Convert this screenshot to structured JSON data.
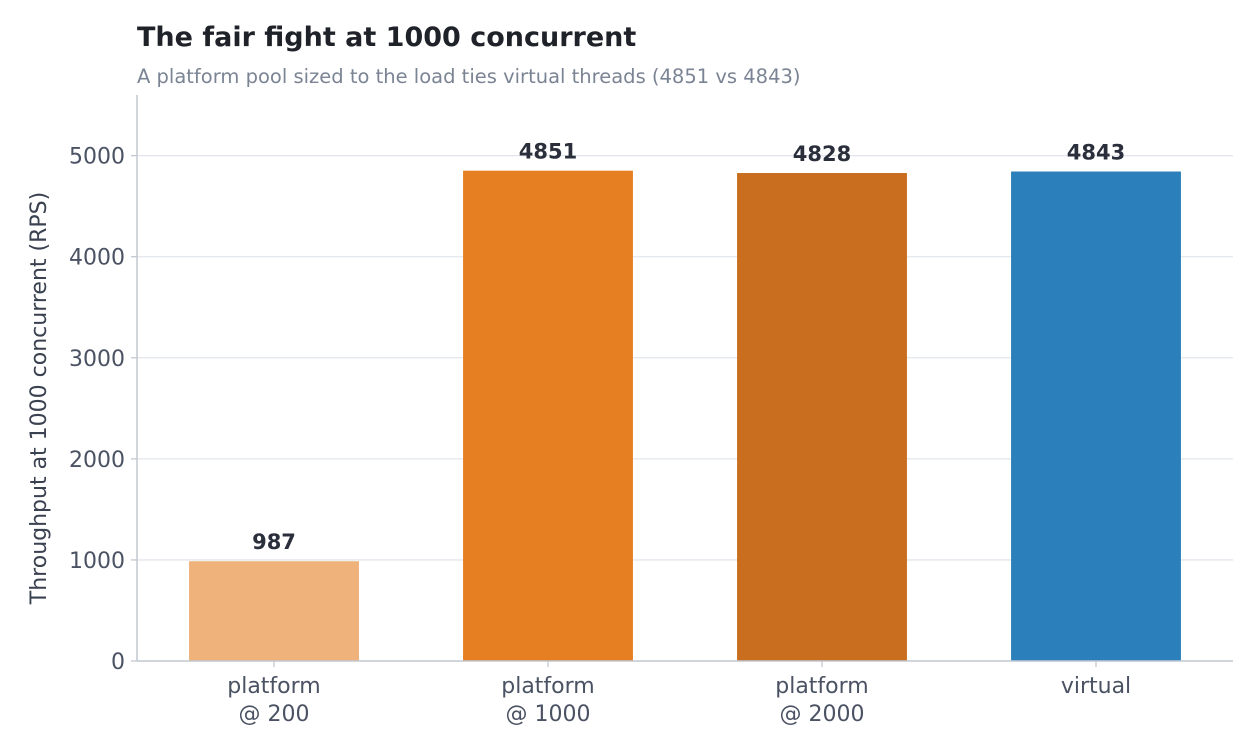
{
  "chart_data": {
    "type": "bar",
    "title": "The fair fight at 1000 concurrent",
    "subtitle": "A platform pool sized to the load ties virtual threads (4851 vs 4843)",
    "xlabel": "",
    "ylabel": "Throughput at 1000 concurrent (RPS)",
    "categories": [
      [
        "platform",
        "@ 200"
      ],
      [
        "platform",
        "@ 1000"
      ],
      [
        "platform",
        "@ 2000"
      ],
      [
        "virtual"
      ]
    ],
    "values": [
      987,
      4851,
      4828,
      4843
    ],
    "value_labels": [
      "987",
      "4851",
      "4828",
      "4843"
    ],
    "colors": [
      "#efb27a",
      "#e57f22",
      "#c96d1e",
      "#2b7fba"
    ],
    "ylim": [
      0,
      5600
    ],
    "yticks": [
      0,
      1000,
      2000,
      3000,
      4000,
      5000
    ],
    "grid": true,
    "legend": "none"
  }
}
